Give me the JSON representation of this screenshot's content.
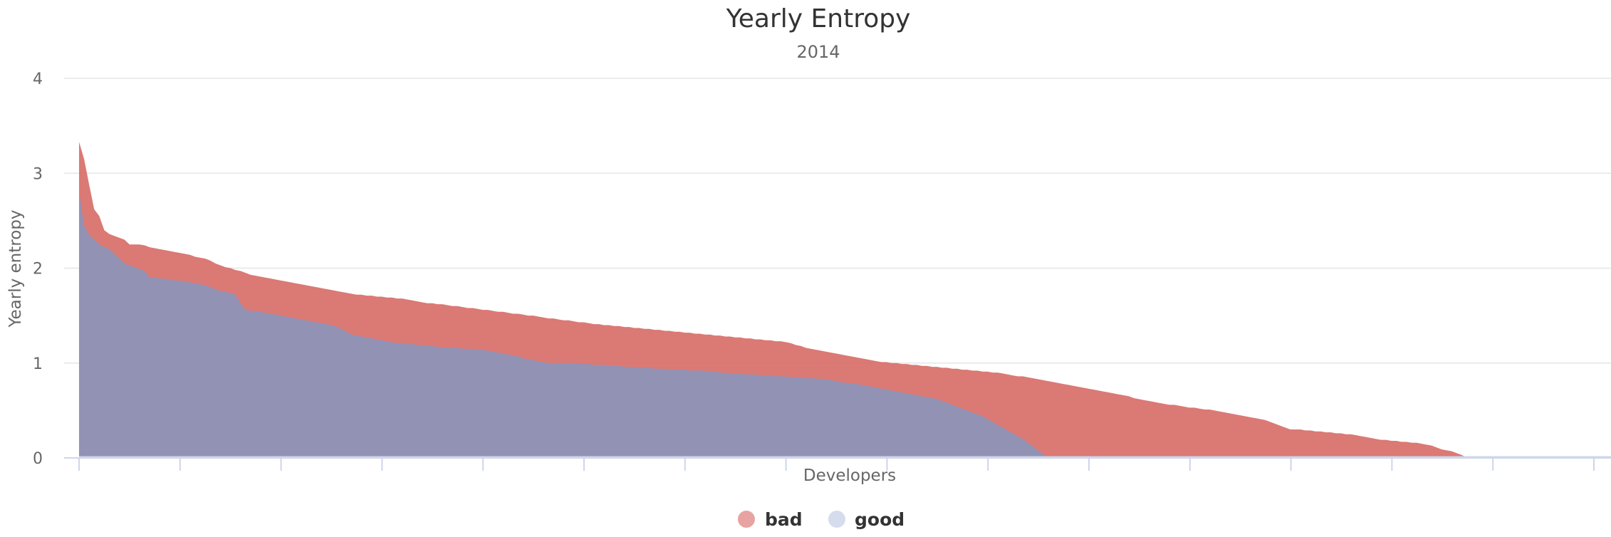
{
  "chart_data": {
    "type": "area",
    "title": "Yearly Entropy",
    "subtitle": "2014",
    "xlabel": "Developers",
    "ylabel": "Yearly entropy",
    "ylim": [
      0,
      4
    ],
    "yticks": [
      "0",
      "1",
      "2",
      "3",
      "4"
    ],
    "grid": true,
    "legend_position": "bottom-center",
    "x_count": 301,
    "series": [
      {
        "name": "bad",
        "color": "#d9726e",
        "values": [
          3.33,
          3.15,
          2.88,
          2.62,
          2.55,
          2.4,
          2.36,
          2.34,
          2.32,
          2.3,
          2.25,
          2.25,
          2.25,
          2.24,
          2.22,
          2.21,
          2.2,
          2.19,
          2.18,
          2.17,
          2.16,
          2.15,
          2.14,
          2.12,
          2.11,
          2.1,
          2.08,
          2.05,
          2.03,
          2.01,
          2.0,
          1.98,
          1.97,
          1.95,
          1.93,
          1.92,
          1.91,
          1.9,
          1.89,
          1.88,
          1.87,
          1.86,
          1.85,
          1.84,
          1.83,
          1.82,
          1.81,
          1.8,
          1.79,
          1.78,
          1.77,
          1.76,
          1.75,
          1.74,
          1.73,
          1.72,
          1.72,
          1.71,
          1.71,
          1.7,
          1.7,
          1.69,
          1.69,
          1.68,
          1.68,
          1.67,
          1.66,
          1.65,
          1.64,
          1.63,
          1.63,
          1.62,
          1.62,
          1.61,
          1.6,
          1.6,
          1.59,
          1.58,
          1.58,
          1.57,
          1.56,
          1.56,
          1.55,
          1.54,
          1.54,
          1.53,
          1.52,
          1.52,
          1.51,
          1.5,
          1.5,
          1.49,
          1.48,
          1.47,
          1.47,
          1.46,
          1.45,
          1.45,
          1.44,
          1.43,
          1.43,
          1.42,
          1.41,
          1.41,
          1.4,
          1.4,
          1.39,
          1.39,
          1.38,
          1.38,
          1.37,
          1.37,
          1.36,
          1.36,
          1.35,
          1.35,
          1.34,
          1.34,
          1.33,
          1.33,
          1.32,
          1.32,
          1.31,
          1.31,
          1.3,
          1.3,
          1.29,
          1.29,
          1.28,
          1.28,
          1.27,
          1.27,
          1.26,
          1.26,
          1.25,
          1.25,
          1.24,
          1.24,
          1.23,
          1.23,
          1.22,
          1.21,
          1.19,
          1.18,
          1.16,
          1.15,
          1.14,
          1.13,
          1.12,
          1.11,
          1.1,
          1.09,
          1.08,
          1.07,
          1.06,
          1.05,
          1.04,
          1.03,
          1.02,
          1.01,
          1.01,
          1.0,
          1.0,
          0.99,
          0.99,
          0.98,
          0.98,
          0.97,
          0.97,
          0.96,
          0.96,
          0.95,
          0.95,
          0.94,
          0.94,
          0.93,
          0.93,
          0.92,
          0.92,
          0.91,
          0.91,
          0.9,
          0.9,
          0.89,
          0.88,
          0.87,
          0.86,
          0.86,
          0.85,
          0.84,
          0.83,
          0.82,
          0.81,
          0.8,
          0.79,
          0.78,
          0.77,
          0.76,
          0.75,
          0.74,
          0.73,
          0.72,
          0.71,
          0.7,
          0.69,
          0.68,
          0.67,
          0.66,
          0.65,
          0.63,
          0.62,
          0.61,
          0.6,
          0.59,
          0.58,
          0.57,
          0.56,
          0.56,
          0.55,
          0.54,
          0.53,
          0.53,
          0.52,
          0.51,
          0.51,
          0.5,
          0.49,
          0.48,
          0.47,
          0.46,
          0.45,
          0.44,
          0.43,
          0.42,
          0.41,
          0.4,
          0.38,
          0.36,
          0.34,
          0.32,
          0.3,
          0.3,
          0.3,
          0.29,
          0.29,
          0.28,
          0.28,
          0.27,
          0.27,
          0.26,
          0.26,
          0.25,
          0.25,
          0.24,
          0.23,
          0.22,
          0.21,
          0.2,
          0.19,
          0.19,
          0.18,
          0.18,
          0.17,
          0.17,
          0.16,
          0.16,
          0.15,
          0.14,
          0.13,
          0.11,
          0.09,
          0.08,
          0.07,
          0.05,
          0.03,
          0.0,
          0.0,
          0.0,
          0.0,
          0.0,
          0.0,
          0.0,
          0.0,
          0.0,
          0.0,
          0.0,
          0.0,
          0.0,
          0.0,
          0.0,
          0.0,
          0.0,
          0.0,
          0.0,
          0.0,
          0.0,
          0.0,
          0.0,
          0.0,
          0.0,
          0.0,
          0.0,
          0.0,
          0.0,
          0.0,
          0.0,
          0.0,
          0.0,
          0.0,
          0.0,
          0.0,
          0.0,
          0.0,
          0.0
        ]
      },
      {
        "name": "good",
        "color": "#8e94b8",
        "values": [
          2.8,
          2.45,
          2.35,
          2.3,
          2.25,
          2.22,
          2.2,
          2.15,
          2.1,
          2.05,
          2.03,
          2.01,
          1.99,
          1.97,
          1.9,
          1.9,
          1.89,
          1.89,
          1.88,
          1.87,
          1.87,
          1.86,
          1.85,
          1.84,
          1.83,
          1.82,
          1.8,
          1.78,
          1.76,
          1.75,
          1.74,
          1.72,
          1.63,
          1.56,
          1.55,
          1.55,
          1.54,
          1.53,
          1.52,
          1.51,
          1.5,
          1.49,
          1.48,
          1.47,
          1.46,
          1.45,
          1.44,
          1.43,
          1.42,
          1.41,
          1.4,
          1.38,
          1.36,
          1.33,
          1.3,
          1.29,
          1.28,
          1.27,
          1.26,
          1.25,
          1.24,
          1.23,
          1.22,
          1.21,
          1.21,
          1.2,
          1.2,
          1.19,
          1.19,
          1.18,
          1.18,
          1.17,
          1.17,
          1.16,
          1.16,
          1.16,
          1.15,
          1.15,
          1.15,
          1.14,
          1.14,
          1.13,
          1.12,
          1.11,
          1.1,
          1.09,
          1.08,
          1.07,
          1.05,
          1.04,
          1.03,
          1.02,
          1.01,
          1.0,
          1.0,
          1.0,
          1.0,
          1.0,
          1.0,
          0.99,
          0.99,
          0.99,
          0.98,
          0.98,
          0.98,
          0.97,
          0.97,
          0.97,
          0.96,
          0.96,
          0.96,
          0.95,
          0.95,
          0.95,
          0.94,
          0.94,
          0.94,
          0.93,
          0.93,
          0.93,
          0.93,
          0.92,
          0.92,
          0.92,
          0.92,
          0.91,
          0.91,
          0.9,
          0.9,
          0.89,
          0.89,
          0.89,
          0.88,
          0.88,
          0.88,
          0.87,
          0.87,
          0.87,
          0.86,
          0.86,
          0.86,
          0.85,
          0.85,
          0.85,
          0.84,
          0.84,
          0.84,
          0.83,
          0.83,
          0.82,
          0.81,
          0.8,
          0.79,
          0.79,
          0.78,
          0.77,
          0.76,
          0.75,
          0.74,
          0.73,
          0.72,
          0.71,
          0.7,
          0.69,
          0.68,
          0.67,
          0.66,
          0.65,
          0.64,
          0.63,
          0.62,
          0.6,
          0.58,
          0.56,
          0.54,
          0.52,
          0.5,
          0.48,
          0.46,
          0.44,
          0.41,
          0.38,
          0.35,
          0.32,
          0.29,
          0.26,
          0.23,
          0.2,
          0.16,
          0.12,
          0.08,
          0.04,
          0.0,
          0.0,
          0.0,
          0.0,
          0.0,
          0.0,
          0.0,
          0.0,
          0.0,
          0.0,
          0.0,
          0.0,
          0.0,
          0.0,
          0.0,
          0.0,
          0.0,
          0.0,
          0.0,
          0.0,
          0.0,
          0.0,
          0.0,
          0.0,
          0.0,
          0.0,
          0.0,
          0.0,
          0.0,
          0.0,
          0.0,
          0.0,
          0.0,
          0.0,
          0.0,
          0.0,
          0.0,
          0.0,
          0.0,
          0.0,
          0.0,
          0.0,
          0.0,
          0.0,
          0.0,
          0.0,
          0.0,
          0.0,
          0.0,
          0.0,
          0.0,
          0.0,
          0.0,
          0.0,
          0.0,
          0.0,
          0.0,
          0.0,
          0.0,
          0.0,
          0.0,
          0.0,
          0.0,
          0.0,
          0.0,
          0.0,
          0.0,
          0.0,
          0.0,
          0.0,
          0.0,
          0.0,
          0.0,
          0.0,
          0.0,
          0.0,
          0.0,
          0.0,
          0.0,
          0.0,
          0.0,
          0.0,
          0.0,
          0.0,
          0.0,
          0.0,
          0.0,
          0.0,
          0.0,
          0.0,
          0.0,
          0.0,
          0.0,
          0.0,
          0.0,
          0.0,
          0.0,
          0.0,
          0.0,
          0.0,
          0.0,
          0.0,
          0.0,
          0.0,
          0.0,
          0.0,
          0.0,
          0.0,
          0.0,
          0.0,
          0.0,
          0.0,
          0.0
        ]
      }
    ]
  },
  "legend": {
    "items": [
      {
        "label": "bad",
        "color": "#e7a3a1"
      },
      {
        "label": "good",
        "color": "#d5dced"
      }
    ]
  }
}
